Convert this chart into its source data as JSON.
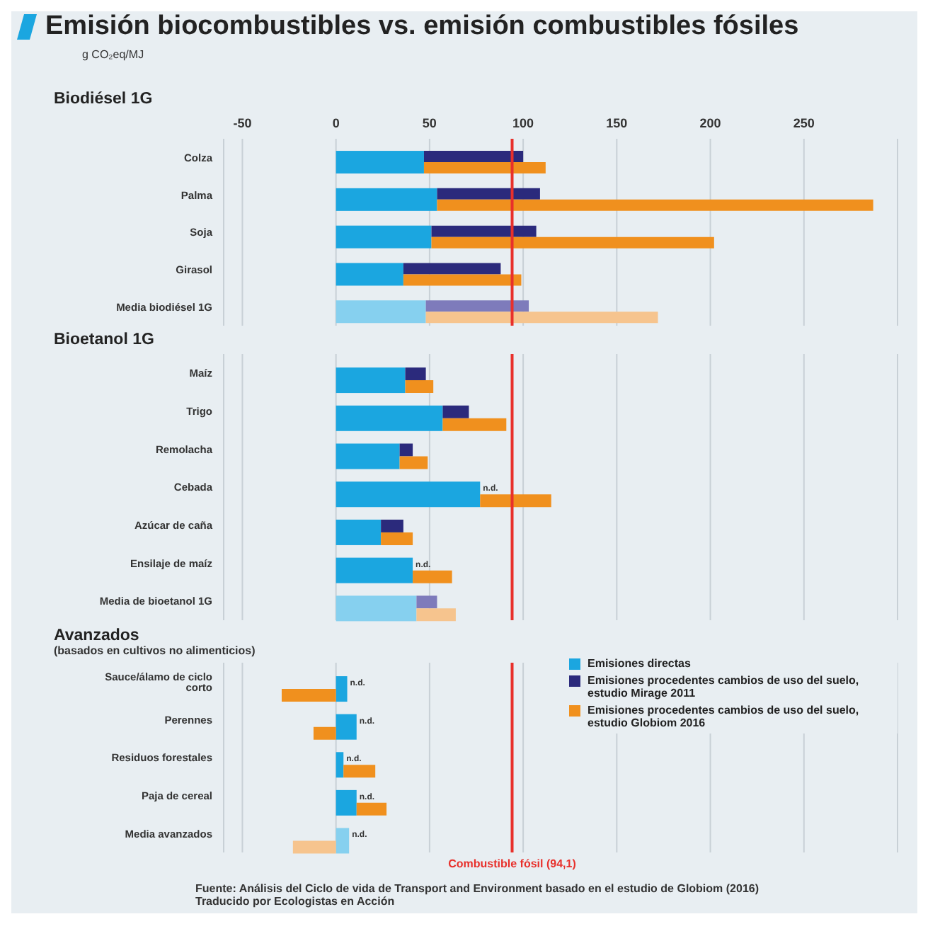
{
  "chart_data": [
    {
      "type": "bar",
      "orientation": "horizontal",
      "title": "Emisión biocombustibles vs. emisión combustibles fósiles",
      "subtitle": "Biodiésel 1G",
      "xlabel": "g CO₂eq/MJ",
      "categories": [
        "Colza",
        "Palma",
        "Soja",
        "Girasol",
        "Media biodiésel 1G"
      ],
      "series": [
        {
          "colors": [
            "#1ba6e0",
            "#1ba6e0",
            "#1ba6e0",
            "#1ba6e0",
            "#86d0ef"
          ],
          "values": [
            47,
            54,
            51,
            36,
            48
          ]
        },
        {
          "colors": [
            "#2b2a7c",
            "#2b2a7c",
            "#2b2a7c",
            "#2b2a7c",
            "#7e7bbb"
          ],
          "values": [
            53,
            55,
            56,
            52,
            55
          ],
          "base": [
            47,
            54,
            51,
            36,
            48
          ]
        },
        {
          "colors": [
            "#f0901e",
            "#f0901e",
            "#f0901e",
            "#f0901e",
            "#f6c48e"
          ],
          "values": [
            65,
            233,
            151,
            63,
            124
          ],
          "base": [
            47,
            54,
            51,
            36,
            48
          ]
        }
      ],
      "xlim": [
        -60,
        300
      ],
      "xticks": [
        -50,
        0,
        50,
        100,
        150,
        200,
        250
      ],
      "grid": "x",
      "ref_lines": [
        {
          "axis": "x",
          "value": 94.1,
          "color": "#e8302b"
        }
      ]
    },
    {
      "type": "bar",
      "orientation": "horizontal",
      "title": "Bioetanol 1G",
      "categories": [
        "Maíz",
        "Trigo",
        "Remolacha",
        "Cebada",
        "Azúcar de caña",
        "Ensilaje de maíz",
        "Media de bioetanol 1G"
      ],
      "series": [
        {
          "colors": [
            "#1ba6e0",
            "#1ba6e0",
            "#1ba6e0",
            "#1ba6e0",
            "#1ba6e0",
            "#1ba6e0",
            "#86d0ef"
          ],
          "values": [
            37,
            57,
            34,
            77,
            24,
            41,
            43
          ]
        },
        {
          "colors": [
            "#2b2a7c",
            "#2b2a7c",
            "#2b2a7c",
            "#2b2a7c",
            "#2b2a7c",
            "#2b2a7c",
            "#7e7bbb"
          ],
          "values": [
            11,
            14,
            7,
            null,
            12,
            null,
            11
          ],
          "base": [
            37,
            57,
            34,
            null,
            24,
            null,
            43
          ],
          "value_labels": [
            null,
            null,
            null,
            "n.d.",
            null,
            "n.d.",
            null
          ]
        },
        {
          "colors": [
            "#f0901e",
            "#f0901e",
            "#f0901e",
            "#f0901e",
            "#f0901e",
            "#f0901e",
            "#f6c48e"
          ],
          "values": [
            15,
            34,
            15,
            38,
            17,
            21,
            21
          ],
          "base": [
            37,
            57,
            34,
            77,
            24,
            41,
            43
          ]
        }
      ],
      "xlim": [
        -60,
        300
      ],
      "xticks": [
        -50,
        0,
        50,
        100,
        150,
        200,
        250
      ],
      "grid": "x",
      "tick_labels": "y",
      "ref_lines": [
        {
          "axis": "x",
          "value": 94.1,
          "color": "#e8302b"
        }
      ]
    },
    {
      "type": "bar",
      "orientation": "horizontal",
      "title": "Avanzados",
      "subtitle": "(basados en cultivos no alimenticios)",
      "categories": [
        "Sauce/álamo de ciclo corto",
        "Perennes",
        "Residuos forestales",
        "Paja de cereal",
        "Media avanzados"
      ],
      "series": [
        {
          "name": "Emisiones directas",
          "color": "#1ba6e0",
          "colors": [
            "#1ba6e0",
            "#1ba6e0",
            "#1ba6e0",
            "#1ba6e0",
            "#86d0ef"
          ],
          "values": [
            6,
            11,
            4,
            11,
            7
          ]
        },
        {
          "name": "Emisiones procedentes cambios de uso del suelo, estudio Mirage 2011",
          "color": "#2b2a7c",
          "values": [
            null,
            null,
            null,
            null,
            null
          ],
          "base": [
            null,
            null,
            null,
            null,
            null
          ],
          "value_labels": [
            "n.d.",
            "n.d.",
            "n.d.",
            "n.d.",
            "n.d."
          ]
        },
        {
          "name": "Emisiones procedentes cambios de uso del suelo, estudio Globiom 2016",
          "color": "#f0901e",
          "colors": [
            "#f0901e",
            "#f0901e",
            "#f0901e",
            "#f0901e",
            "#f6c48e"
          ],
          "values": [
            -29,
            -12,
            17,
            16,
            -23
          ],
          "base": [
            0,
            0,
            4,
            11,
            0
          ]
        }
      ],
      "xlim": [
        -60,
        300
      ],
      "xticks": [
        -50,
        0,
        50,
        100,
        150,
        200,
        250
      ],
      "grid": "x",
      "tick_labels": "y",
      "legend": "top right",
      "ref_lines": [
        {
          "axis": "x",
          "value": 94.1,
          "color": "#e8302b",
          "label": "Combustible fósil (94,1)"
        }
      ],
      "annotations": [
        "Fuente: Análisis del Ciclo de vida de Transport and Environment basado en el estudio de Globiom (2016)",
        "Traducido por Ecologistas en Acción"
      ]
    }
  ]
}
